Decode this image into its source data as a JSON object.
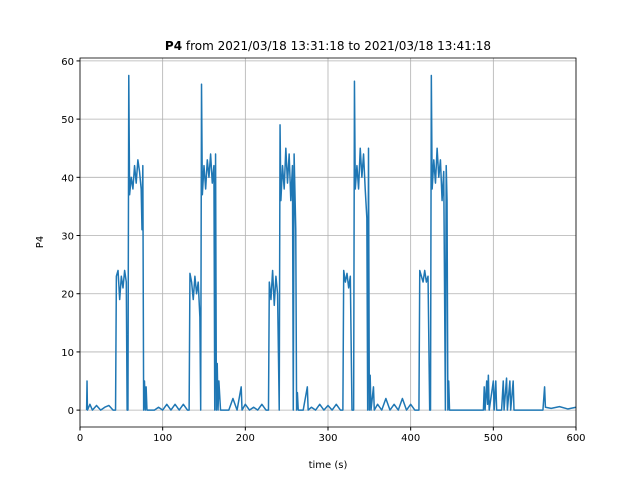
{
  "chart_data": {
    "type": "line",
    "title_bold": "P4",
    "title": "from 2021/03/18 13:31:18 to 2021/03/18 13:41:18",
    "xlabel": "time (s)",
    "ylabel": "P4",
    "xlim": [
      0,
      600
    ],
    "xticks": [
      0,
      100,
      200,
      300,
      400,
      500,
      600
    ],
    "ylim": [
      -2.9,
      60.5
    ],
    "yticks": [
      0,
      10,
      20,
      30,
      40,
      50,
      60
    ],
    "grid": true,
    "series": [
      {
        "name": "P4",
        "color": "#1f77b4",
        "x": [
          8,
          8.5,
          9,
          12,
          15,
          20,
          25,
          30,
          35,
          40,
          43,
          44,
          46,
          48,
          50,
          52,
          54,
          56,
          57,
          58,
          59,
          60,
          62,
          64,
          66,
          68,
          70,
          72,
          74,
          75,
          76,
          77,
          78,
          79,
          80,
          81,
          90,
          95,
          100,
          105,
          110,
          115,
          120,
          125,
          130,
          132,
          133,
          135,
          137,
          139,
          141,
          143,
          145,
          146,
          147,
          148,
          150,
          152,
          154,
          156,
          158,
          160,
          162,
          163,
          164,
          165,
          166,
          167,
          168,
          170,
          180,
          185,
          190,
          195,
          196,
          200,
          205,
          210,
          215,
          220,
          225,
          228,
          229,
          231,
          233,
          235,
          237,
          239,
          241,
          242,
          243,
          245,
          247,
          249,
          251,
          253,
          255,
          257,
          258,
          259,
          261,
          262,
          263,
          264,
          270,
          275,
          276,
          280,
          285,
          290,
          295,
          300,
          305,
          310,
          315,
          318,
          319,
          321,
          323,
          325,
          327,
          329,
          331,
          332,
          333,
          335,
          337,
          339,
          341,
          343,
          345,
          347,
          348,
          349,
          350,
          351,
          352,
          355,
          356,
          360,
          365,
          370,
          375,
          380,
          385,
          390,
          395,
          400,
          405,
          410,
          411,
          413,
          415,
          417,
          419,
          421,
          423,
          424,
          425,
          426,
          428,
          430,
          432,
          434,
          436,
          438,
          440,
          442,
          443,
          444,
          445,
          446,
          447,
          460,
          480,
          488,
          489,
          490,
          492,
          493,
          494,
          495,
          500,
          501,
          503,
          504,
          510,
          512,
          513,
          516,
          517,
          520,
          521,
          524,
          525,
          540,
          560,
          562,
          563,
          570,
          580,
          590,
          600
        ],
        "values": [
          0,
          5,
          0,
          1,
          0,
          0.8,
          0,
          0.5,
          0.8,
          0,
          0,
          23,
          24,
          19,
          23,
          21,
          24,
          22,
          0,
          0,
          57.5,
          37,
          40,
          38,
          42,
          39,
          43,
          41,
          38,
          31,
          42,
          0,
          5,
          0,
          4,
          0,
          0,
          0.5,
          0,
          1,
          0,
          1,
          0,
          1,
          0,
          0,
          23.5,
          22,
          19,
          23,
          20,
          22,
          16,
          0,
          56,
          37,
          42,
          38,
          43,
          40,
          44,
          39,
          42,
          0,
          44,
          0,
          8,
          0,
          5,
          0,
          0,
          2,
          0,
          4,
          0,
          1,
          0,
          0.5,
          0,
          1,
          0,
          0,
          22,
          19,
          24,
          18,
          23,
          20,
          0,
          49,
          36,
          42,
          38,
          45,
          39,
          44,
          36,
          42,
          0,
          44,
          31,
          0,
          3,
          0,
          0,
          4,
          0,
          0.5,
          0,
          1,
          0,
          0.8,
          0,
          1,
          0,
          0,
          24,
          22,
          23.5,
          21,
          23,
          0,
          0,
          56.5,
          38,
          42,
          38,
          45,
          40,
          44,
          38,
          33,
          0,
          45,
          0,
          6,
          0,
          4,
          0,
          1,
          0,
          2,
          0,
          1,
          0,
          2,
          0,
          1,
          0,
          0,
          24,
          23,
          22,
          24,
          22,
          23,
          0,
          0,
          57.5,
          38,
          43,
          39,
          45,
          40,
          43,
          36,
          41,
          0,
          42,
          36,
          0,
          5,
          0,
          0,
          0,
          0,
          4,
          0,
          5,
          1,
          6,
          0,
          5,
          0,
          5,
          0,
          0,
          5,
          0,
          5.5,
          0,
          5,
          0,
          5,
          0,
          0,
          0,
          4,
          0.5,
          0.3,
          0.6,
          0.2,
          0.5
        ]
      }
    ]
  }
}
